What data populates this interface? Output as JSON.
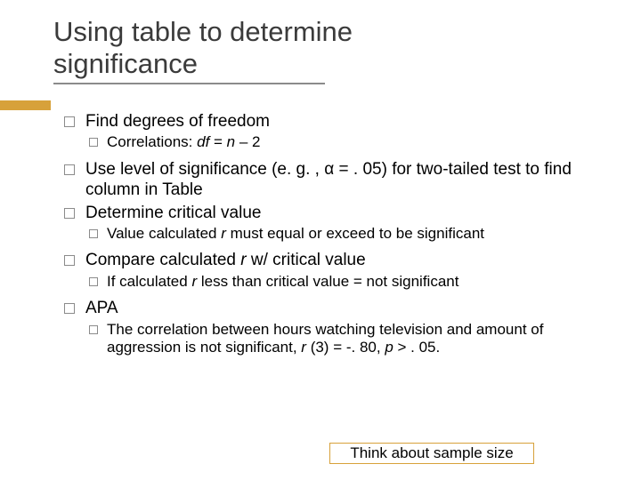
{
  "title": {
    "line1": "Using table to determine",
    "line2": "significance"
  },
  "bullets": {
    "b1": "Find degrees of freedom",
    "b1_sub_pre": "Correlations: ",
    "b1_sub_df": "df",
    "b1_sub_eq": " = ",
    "b1_sub_n": "n",
    "b1_sub_post": " – 2",
    "b2_pre": "Use level of significance (e. g. , ",
    "b2_alpha": "α = ",
    "b2_post": ". 05) for two-tailed test to find column in Table",
    "b3": "Determine critical value",
    "b3_sub_pre": "Value calculated ",
    "b3_sub_r": "r",
    "b3_sub_post": " must equal or exceed to be significant",
    "b4_pre": "Compare calculated ",
    "b4_r": "r",
    "b4_post": " w/ critical value",
    "b4_sub_pre": "If calculated ",
    "b4_sub_r": "r",
    "b4_sub_post": " less than critical value = not significant",
    "b5": "APA",
    "b5_sub_pre": "The correlation between hours watching television and amount of aggression is not significant, ",
    "b5_sub_r": "r",
    "b5_sub_stat": " (3) = -. 80, ",
    "b5_sub_p": "p",
    "b5_sub_end": " > . 05."
  },
  "highlight": "Think about sample size",
  "colors": {
    "accent": "#d7a13a",
    "title_color": "#3b3b3b",
    "bullet_border": "#8b8b8b",
    "background": "#ffffff"
  },
  "typography": {
    "title_fontsize": 31,
    "body_fontsize": 19,
    "sub_fontsize": 17
  }
}
